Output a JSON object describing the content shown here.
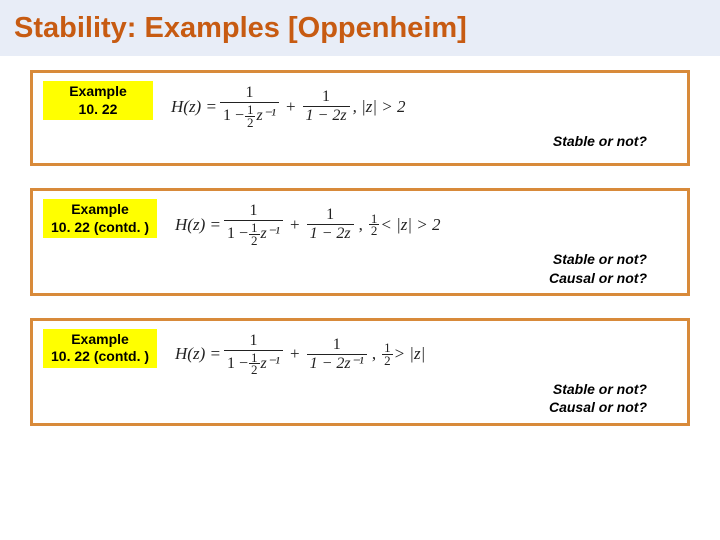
{
  "slide": {
    "title": "Stability: Examples [Oppenheim]",
    "title_color": "#c75b12",
    "title_bg": "#e8edf7",
    "title_fontsize": 29,
    "box_border_color": "#d88a3a",
    "label_bg": "#ffff00",
    "background": "#ffffff"
  },
  "examples": [
    {
      "label": "Example\n10. 22",
      "formula": {
        "lhs": "H(z) =",
        "term1": {
          "num": "1",
          "den_prefix": "1 −",
          "coef_num": "1",
          "coef_den": "2",
          "zpow": "z⁻¹"
        },
        "term2": {
          "num": "1",
          "den": "1 − 2z"
        },
        "roc": ", |z| > 2"
      },
      "questions": "Stable or not?"
    },
    {
      "label": "Example\n10. 22 (contd. )",
      "formula": {
        "lhs": "H(z) =",
        "term1": {
          "num": "1",
          "den_prefix": "1 −",
          "coef_num": "1",
          "coef_den": "2",
          "zpow": "z⁻¹"
        },
        "term2": {
          "num": "1",
          "den": "1 − 2z"
        },
        "roc_prefix": ",",
        "roc_coef_num": "1",
        "roc_coef_den": "2",
        "roc_suffix": "< |z| > 2"
      },
      "questions": "Stable or not?\nCausal or not?"
    },
    {
      "label": "Example\n10. 22 (contd. )",
      "formula": {
        "lhs": "H(z) =",
        "term1": {
          "num": "1",
          "den_prefix": "1 −",
          "coef_num": "1",
          "coef_den": "2",
          "zpow": "z⁻¹"
        },
        "term2": {
          "num": "1",
          "den": "1 − 2z⁻¹"
        },
        "roc_prefix": ",",
        "roc_coef_num": "1",
        "roc_coef_den": "2",
        "roc_suffix": "> |z|"
      },
      "questions": "Stable or not?\nCausal or not?"
    }
  ]
}
